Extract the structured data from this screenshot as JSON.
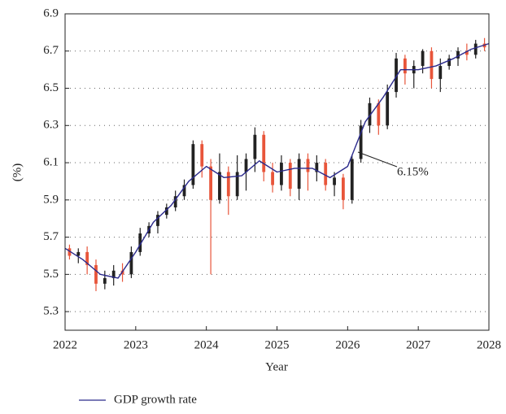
{
  "chart_data": {
    "type": "candlestick",
    "x_label": "Year",
    "y_label": "(%)",
    "xlim": [
      2022,
      2028
    ],
    "xticks": [
      2022,
      2023,
      2024,
      2025,
      2026,
      2027,
      2028
    ],
    "ylim": [
      5.2,
      6.9
    ],
    "yticks": [
      5.3,
      5.5,
      5.7,
      5.9,
      6.1,
      6.3,
      6.5,
      6.7,
      6.9
    ],
    "grid": true,
    "up_color": "#222222",
    "down_color": "#e8553a",
    "annotation": "6.15%",
    "candles": {
      "x": [
        2022.0625,
        2022.1875,
        2022.3125,
        2022.4375,
        2022.5625,
        2022.6875,
        2022.8125,
        2022.9375,
        2023.0625,
        2023.1875,
        2023.3125,
        2023.4375,
        2023.5625,
        2023.6875,
        2023.8125,
        2023.9375,
        2024.0625,
        2024.1875,
        2024.3125,
        2024.4375,
        2024.5625,
        2024.6875,
        2024.8125,
        2024.9375,
        2025.0625,
        2025.1875,
        2025.3125,
        2025.4375,
        2025.5625,
        2025.6875,
        2025.8125,
        2025.9375,
        2026.0625,
        2026.1875,
        2026.3125,
        2026.4375,
        2026.5625,
        2026.6875,
        2026.8125,
        2026.9375,
        2027.0625,
        2027.1875,
        2027.3125,
        2027.4375,
        2027.5625,
        2027.6875,
        2027.8125,
        2027.9375
      ],
      "open": [
        5.64,
        5.6,
        5.62,
        5.55,
        5.45,
        5.48,
        5.52,
        5.5,
        5.62,
        5.72,
        5.76,
        5.82,
        5.86,
        5.92,
        5.98,
        6.2,
        6.08,
        5.9,
        6.05,
        5.92,
        6.05,
        6.12,
        6.25,
        6.05,
        5.98,
        6.1,
        5.96,
        6.12,
        6.05,
        6.1,
        5.98,
        6.02,
        5.9,
        6.12,
        6.3,
        6.42,
        6.3,
        6.48,
        6.66,
        6.58,
        6.62,
        6.7,
        6.55,
        6.62,
        6.66,
        6.7,
        6.68,
        6.74
      ],
      "close": [
        5.6,
        5.62,
        5.55,
        5.45,
        5.48,
        5.52,
        5.5,
        5.62,
        5.72,
        5.76,
        5.82,
        5.86,
        5.92,
        5.98,
        6.2,
        6.08,
        5.9,
        6.05,
        5.92,
        6.05,
        6.12,
        6.25,
        6.05,
        5.98,
        6.1,
        5.96,
        6.12,
        6.05,
        6.1,
        5.98,
        6.02,
        5.9,
        6.12,
        6.3,
        6.42,
        6.3,
        6.48,
        6.66,
        6.58,
        6.62,
        6.7,
        6.55,
        6.62,
        6.66,
        6.7,
        6.68,
        6.74,
        6.72
      ],
      "high": [
        5.66,
        5.64,
        5.65,
        5.58,
        5.52,
        5.55,
        5.56,
        5.65,
        5.75,
        5.78,
        5.84,
        5.88,
        5.95,
        6.01,
        6.22,
        6.22,
        6.12,
        6.15,
        6.08,
        6.14,
        6.15,
        6.29,
        6.27,
        6.1,
        6.14,
        6.12,
        6.15,
        6.15,
        6.14,
        6.12,
        6.05,
        6.04,
        6.14,
        6.33,
        6.45,
        6.44,
        6.52,
        6.69,
        6.68,
        6.65,
        6.71,
        6.72,
        6.66,
        6.68,
        6.72,
        6.74,
        6.76,
        6.77
      ],
      "low": [
        5.58,
        5.56,
        5.5,
        5.41,
        5.42,
        5.44,
        5.46,
        5.48,
        5.6,
        5.7,
        5.72,
        5.8,
        5.84,
        5.9,
        5.96,
        6.02,
        5.5,
        5.88,
        5.82,
        5.9,
        5.95,
        6.05,
        6.0,
        5.94,
        5.95,
        5.92,
        5.9,
        5.95,
        6.0,
        5.95,
        5.92,
        5.85,
        5.88,
        6.1,
        6.26,
        6.25,
        6.28,
        6.45,
        6.52,
        6.5,
        6.58,
        6.5,
        6.48,
        6.6,
        6.62,
        6.65,
        6.66,
        6.7
      ]
    },
    "series": [
      {
        "name": "GDP growth rate",
        "color": "#2b2a8c",
        "x": [
          2022,
          2022.25,
          2022.5,
          2022.75,
          2023,
          2023.25,
          2023.5,
          2023.75,
          2024,
          2024.25,
          2024.5,
          2024.75,
          2025,
          2025.25,
          2025.5,
          2025.75,
          2026,
          2026.25,
          2026.5,
          2026.75,
          2027,
          2027.25,
          2027.5,
          2027.75,
          2028
        ],
        "values": [
          5.64,
          5.58,
          5.5,
          5.48,
          5.62,
          5.78,
          5.87,
          6.0,
          6.08,
          6.02,
          6.03,
          6.11,
          6.05,
          6.07,
          6.07,
          6.02,
          6.08,
          6.32,
          6.45,
          6.6,
          6.6,
          6.62,
          6.66,
          6.71,
          6.74
        ]
      }
    ]
  }
}
